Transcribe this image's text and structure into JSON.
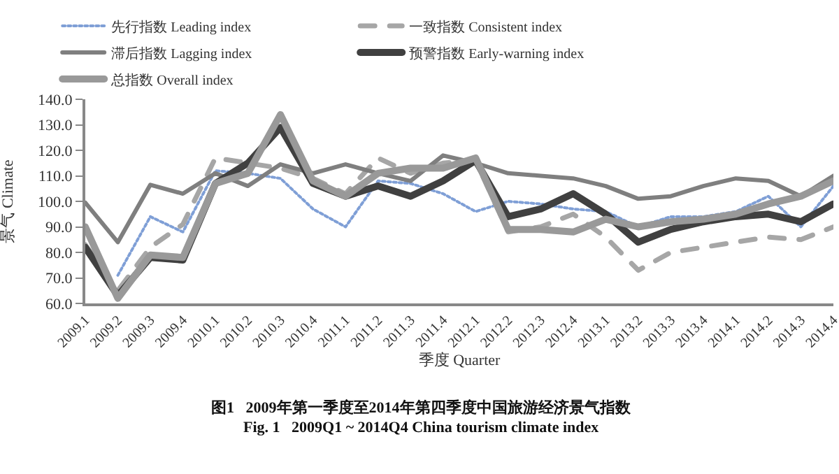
{
  "chart_data": {
    "type": "line",
    "xlabel": "季度 Quarter",
    "ylabel": "景气 Climate",
    "categories": [
      "2009.1",
      "2009.2",
      "2009.3",
      "2009.4",
      "2010.1",
      "2010.2",
      "2010.3",
      "2010.4",
      "2011.1",
      "2011.2",
      "2011.3",
      "2011.4",
      "2012.1",
      "2012.2",
      "2012.3",
      "2012.4",
      "2013.1",
      "2013.2",
      "2013.3",
      "2013.4",
      "2014.1",
      "2014.2",
      "2014.3",
      "2014.4"
    ],
    "ylim": [
      60,
      140
    ],
    "yticks": [
      {
        "value": 60,
        "label": "60.0"
      },
      {
        "value": 70,
        "label": "70.0"
      },
      {
        "value": 80,
        "label": "80.0"
      },
      {
        "value": 90,
        "label": "90.0"
      },
      {
        "value": 100,
        "label": "100.0"
      },
      {
        "value": 110,
        "label": "110.0"
      },
      {
        "value": 120,
        "label": "120.0"
      },
      {
        "value": 130,
        "label": "130.0"
      },
      {
        "value": 140,
        "label": "140.0"
      }
    ],
    "legend": "top",
    "marker": "none",
    "series": [
      {
        "name": "先行指数 Leading index",
        "color": "#7f9fd6",
        "line_style": "dotted",
        "values": [
          null,
          71,
          94,
          88,
          112,
          111,
          109,
          97,
          90,
          108,
          107,
          103,
          96,
          100,
          99,
          97,
          96,
          90,
          94,
          94,
          96,
          102,
          90,
          106
        ]
      },
      {
        "name": "一致指数 Consistent index",
        "color": "#a6a6a6",
        "line_style": "dashed",
        "values": [
          83,
          65,
          82,
          91,
          117,
          115,
          113,
          109,
          103,
          117,
          111,
          115,
          116,
          88,
          90,
          95,
          86,
          73,
          80,
          82,
          84,
          86,
          85,
          90
        ]
      },
      {
        "name": "滞后指数 Lagging index",
        "color": "#7f7f7f",
        "line_style": "solid",
        "values": [
          99.5,
          84,
          106.5,
          103,
          111,
          106,
          114.5,
          111,
          114.5,
          111,
          108,
          118,
          115,
          111,
          110,
          109,
          106,
          101,
          102,
          106,
          109,
          108,
          102,
          110
        ]
      },
      {
        "name": "预警指数 Early-warning index",
        "color": "#404040",
        "line_style": "solid",
        "values": [
          82,
          63,
          78,
          77,
          107,
          115,
          129,
          107,
          102,
          106,
          102,
          108,
          116,
          94,
          97,
          103,
          95,
          84,
          89,
          92,
          94,
          95,
          92,
          99
        ]
      },
      {
        "name": "总指数 Overall index",
        "color": "#999999",
        "line_style": "solid",
        "values": [
          90,
          62,
          79,
          78,
          107,
          111,
          134,
          108,
          102,
          111,
          113,
          113,
          117,
          89,
          89,
          88,
          93,
          90,
          92,
          93,
          95,
          99,
          102,
          108
        ]
      }
    ],
    "annotations": [
      "图1   2009年第一季度至2014年第四季度中国旅游经济景气指数",
      "Fig. 1   2009Q1 ~ 2014Q4 China tourism climate index"
    ]
  }
}
